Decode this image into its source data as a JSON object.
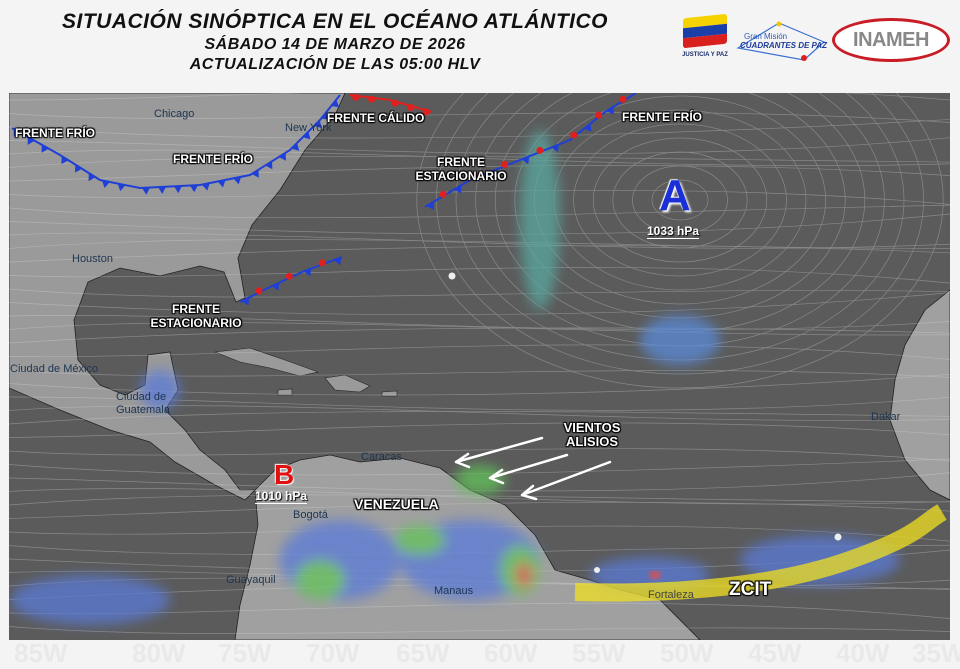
{
  "header": {
    "title": "SITUACIÓN SINÓPTICA EN EL OCÉANO ATLÁNTICO",
    "date": "SÁBADO 14 DE MARZO DE 2026",
    "update": "ACTUALIZACIÓN DE LAS 05:00 HLV"
  },
  "logos": {
    "justicia": "JUSTICIA Y PAZ",
    "gran_mision": "Gran Misión",
    "cuadrantes": "CUADRANTES DE PAZ",
    "inameh": "INAMEH"
  },
  "longitudes": [
    "85W",
    "80W",
    "75W",
    "70W",
    "65W",
    "60W",
    "55W",
    "50W",
    "45W",
    "40W",
    "35W"
  ],
  "map": {
    "fronts": {
      "cold_1": "FRENTE FRÍO",
      "cold_2": "FRENTE FRÍO",
      "cold_3": "FRENTE FRÍO",
      "warm": "FRENTE CÁLIDO",
      "stationary_1": "FRENTE ESTACIONARIO",
      "stationary_2": "FRENTE ESTACIONARIO"
    },
    "high": {
      "letter": "A",
      "pressure": "1033 hPa"
    },
    "low": {
      "letter": "B",
      "pressure": "1010 hPa"
    },
    "trade_winds": "VIENTOS ALISIOS",
    "itcz": "ZCIT",
    "country": "VENEZUELA",
    "cities": [
      "Chicago",
      "New York",
      "Houston",
      "Ciudad de México",
      "Ciudad de Guatemala",
      "Caracas",
      "Bogotá",
      "Guayaquil",
      "Manaus",
      "Fortaleza",
      "Dakar"
    ],
    "colors": {
      "cold_front": "#1f3fd6",
      "warm_front": "#e0201e",
      "high": "#1a2fd8",
      "low": "#e01010",
      "itcz": "#f0e020",
      "ocean": "#5a5a5a",
      "land": "#9a9a9a"
    }
  }
}
